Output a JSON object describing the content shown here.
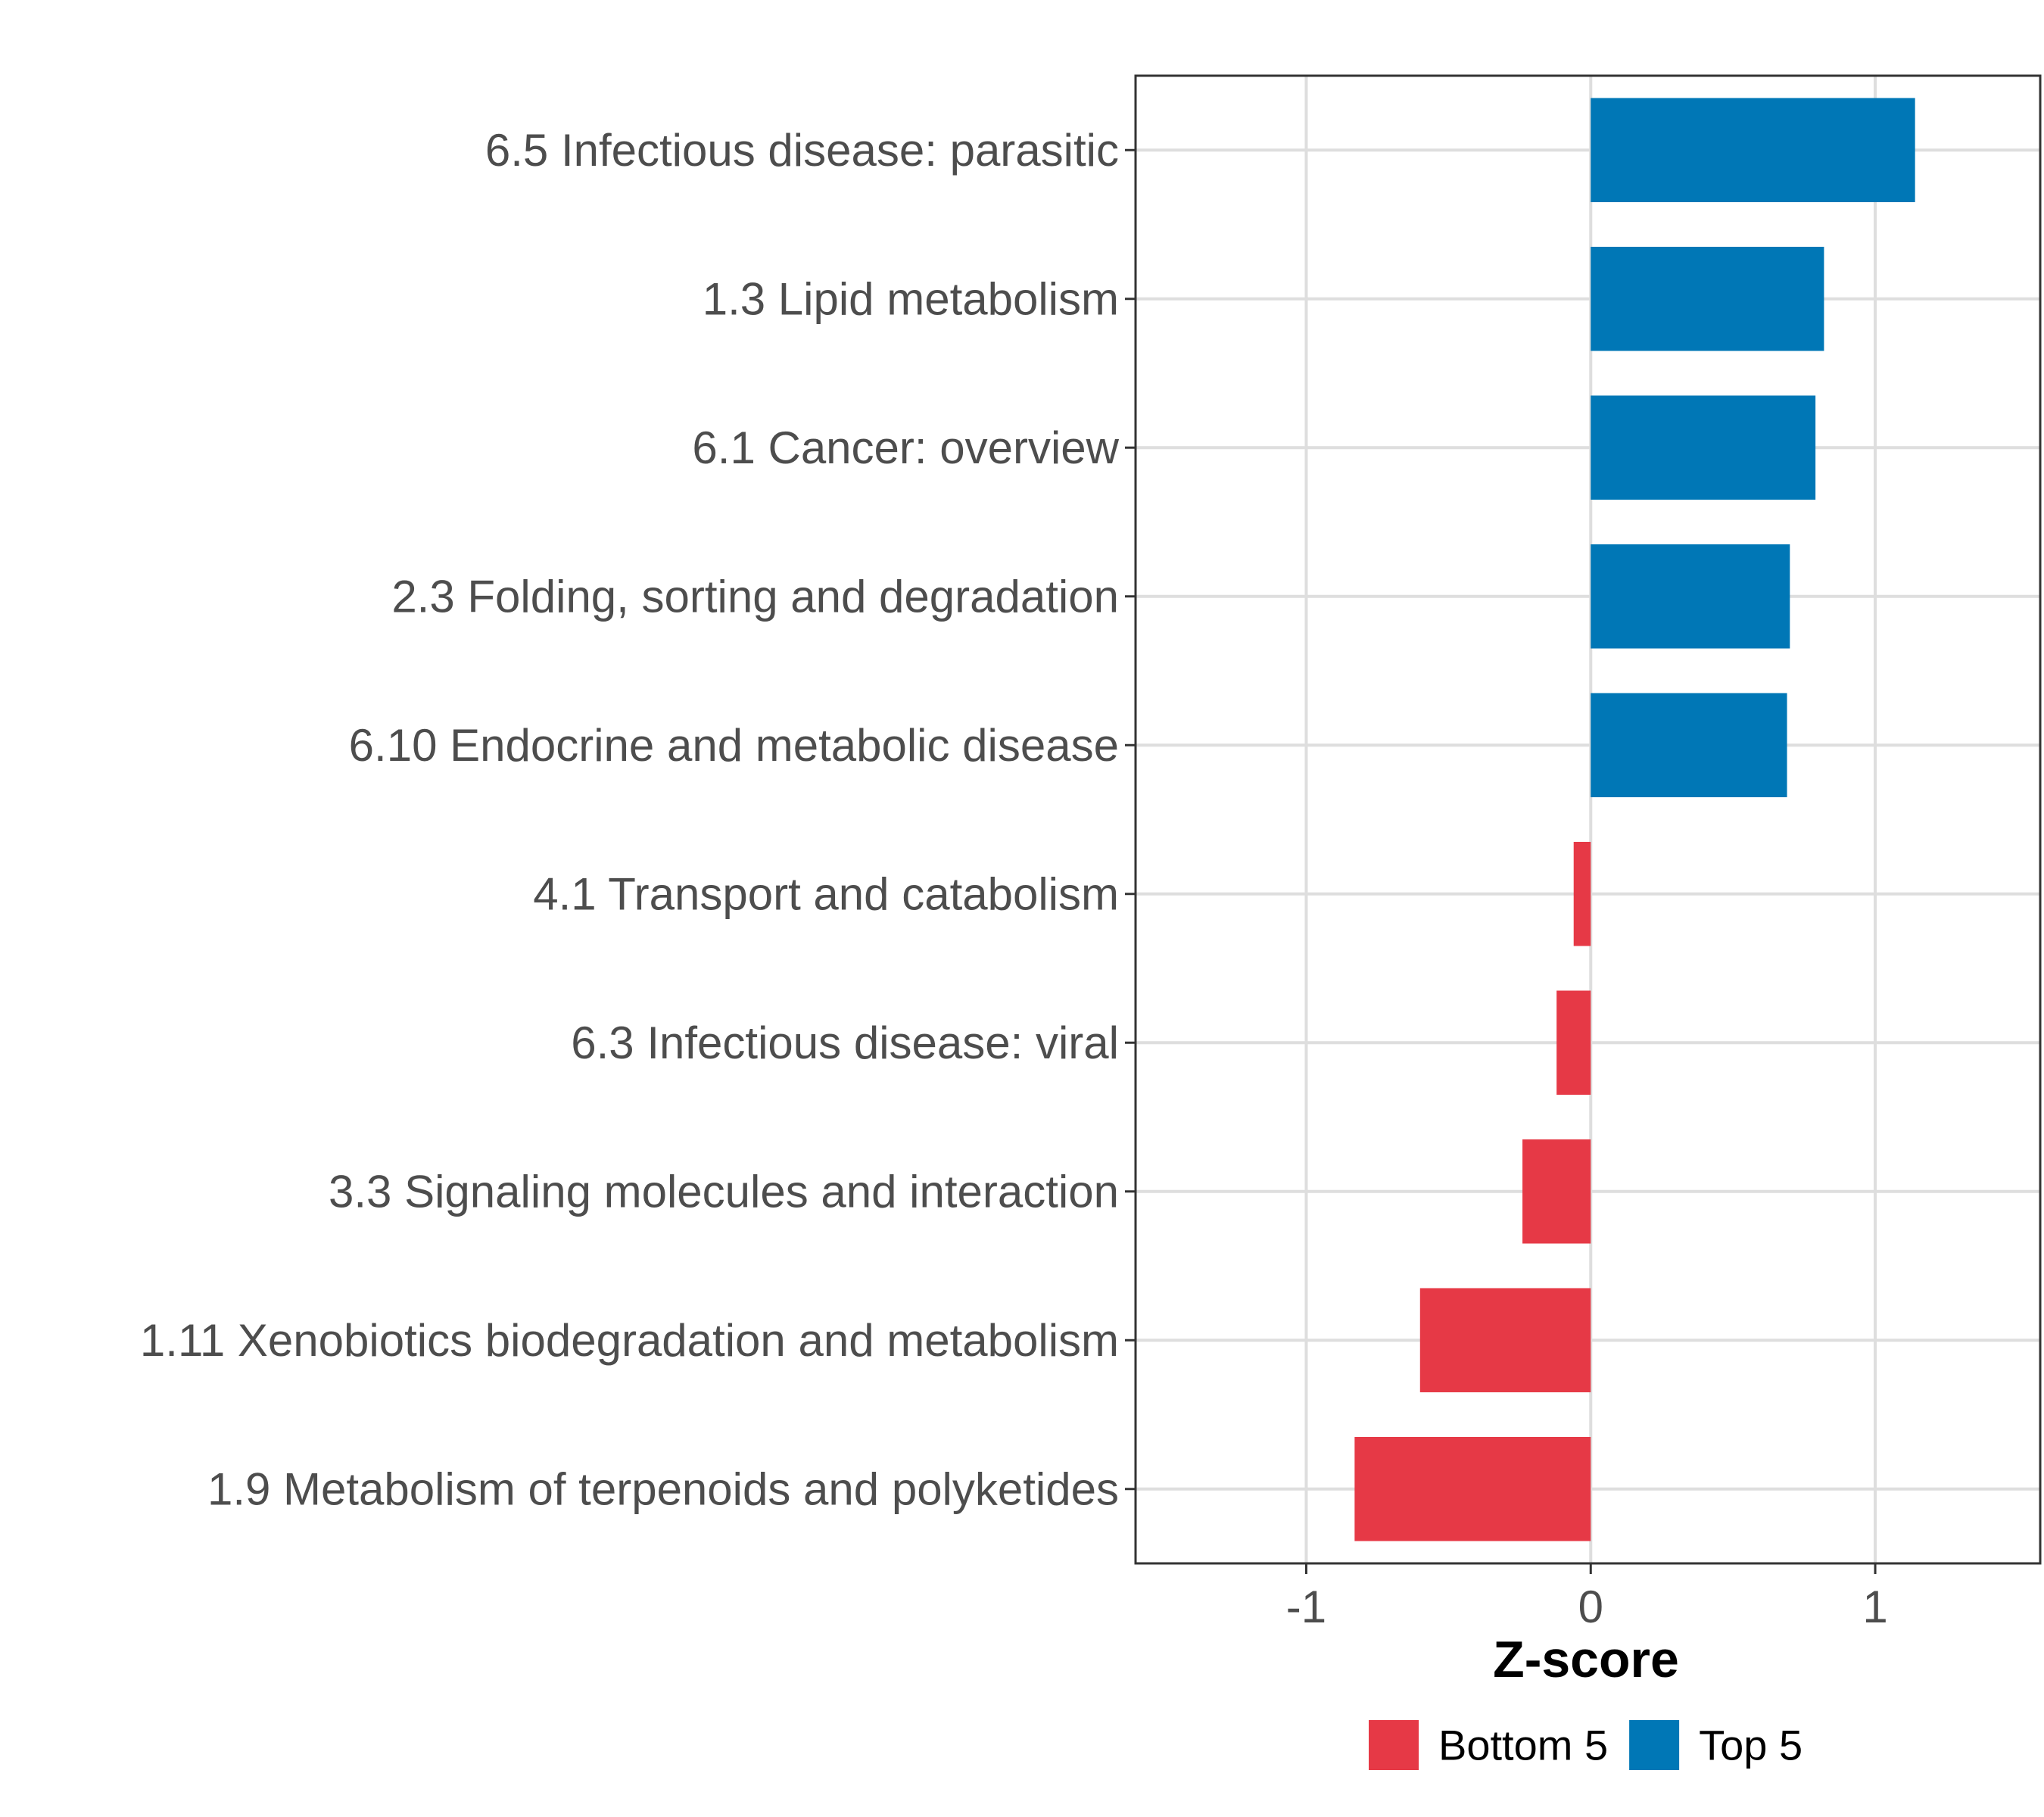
{
  "chart_data": {
    "type": "bar",
    "orientation": "horizontal",
    "title": "",
    "xlabel": "Z-score",
    "ylabel": "",
    "xlim": [
      -1.6,
      1.58
    ],
    "xticks": [
      -1,
      0,
      1
    ],
    "xtick_labels": [
      "-1",
      "0",
      "1"
    ],
    "grid": true,
    "legend_position": "bottom",
    "categories": [
      "6.5 Infectious disease: parasitic",
      "1.3 Lipid metabolism",
      "6.1 Cancer: overview",
      "2.3 Folding, sorting and degradation",
      "6.10 Endocrine and metabolic disease",
      "4.1 Transport and catabolism",
      "6.3 Infectious disease: viral",
      "3.3 Signaling molecules and interaction",
      "1.11 Xenobiotics biodegradation and metabolism",
      "1.9 Metabolism of terpenoids and polyketides"
    ],
    "values": [
      1.14,
      0.82,
      0.79,
      0.7,
      0.69,
      -0.06,
      -0.12,
      -0.24,
      -0.6,
      -0.83
    ],
    "groups": [
      "Top 5",
      "Top 5",
      "Top 5",
      "Top 5",
      "Top 5",
      "Bottom 5",
      "Bottom 5",
      "Bottom 5",
      "Bottom 5",
      "Bottom 5"
    ],
    "legend": [
      {
        "name": "Bottom 5",
        "color": "#e63946"
      },
      {
        "name": "Top 5",
        "color": "#0077b6"
      }
    ]
  }
}
